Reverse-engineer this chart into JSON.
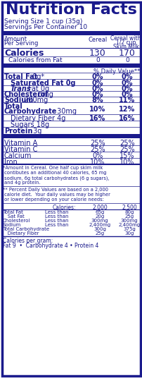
{
  "title": "Nutrition Facts",
  "serving_size": "Serving Size 1 cup (35g)",
  "servings_per_container": "Servings Per Container 10",
  "bg_color": "#FFFFFF",
  "text_color": "#1a1a8c",
  "border_color": "#1a1a8c",
  "footnote1_lines": [
    "*Amount in Cereal. One half cup skim milk",
    " contibutes an additional 40 calories, 65 mg",
    " sodium, 6g total carbohydrates (6 g sugars),",
    " and 4g protein."
  ],
  "footnote2_lines": [
    "** Percent Daily Values are based on a 2,000",
    " calorie diet.  Your daily values may be higher",
    " or lower depending on your calorie needs:"
  ],
  "dv_table": [
    [
      "Total Fat",
      "Less than",
      "65g",
      "80g"
    ],
    [
      "   Sat Fat",
      "Less than",
      "20g",
      "25g"
    ],
    [
      "Cholesterol",
      "Less than",
      "300mg",
      "300mg"
    ],
    [
      "Sodium",
      "Less than",
      "2,400mg",
      "2,400mg"
    ],
    [
      "Total Carbohydrate",
      "",
      "300g",
      "375g"
    ],
    [
      "   Dietary Fiber",
      "",
      "25g",
      "30g"
    ]
  ],
  "cal_per_gram": "Calories per gram:",
  "cal_per_gram_detail": "Fat 9  •  Carbohydrate 4 • Protein 4"
}
